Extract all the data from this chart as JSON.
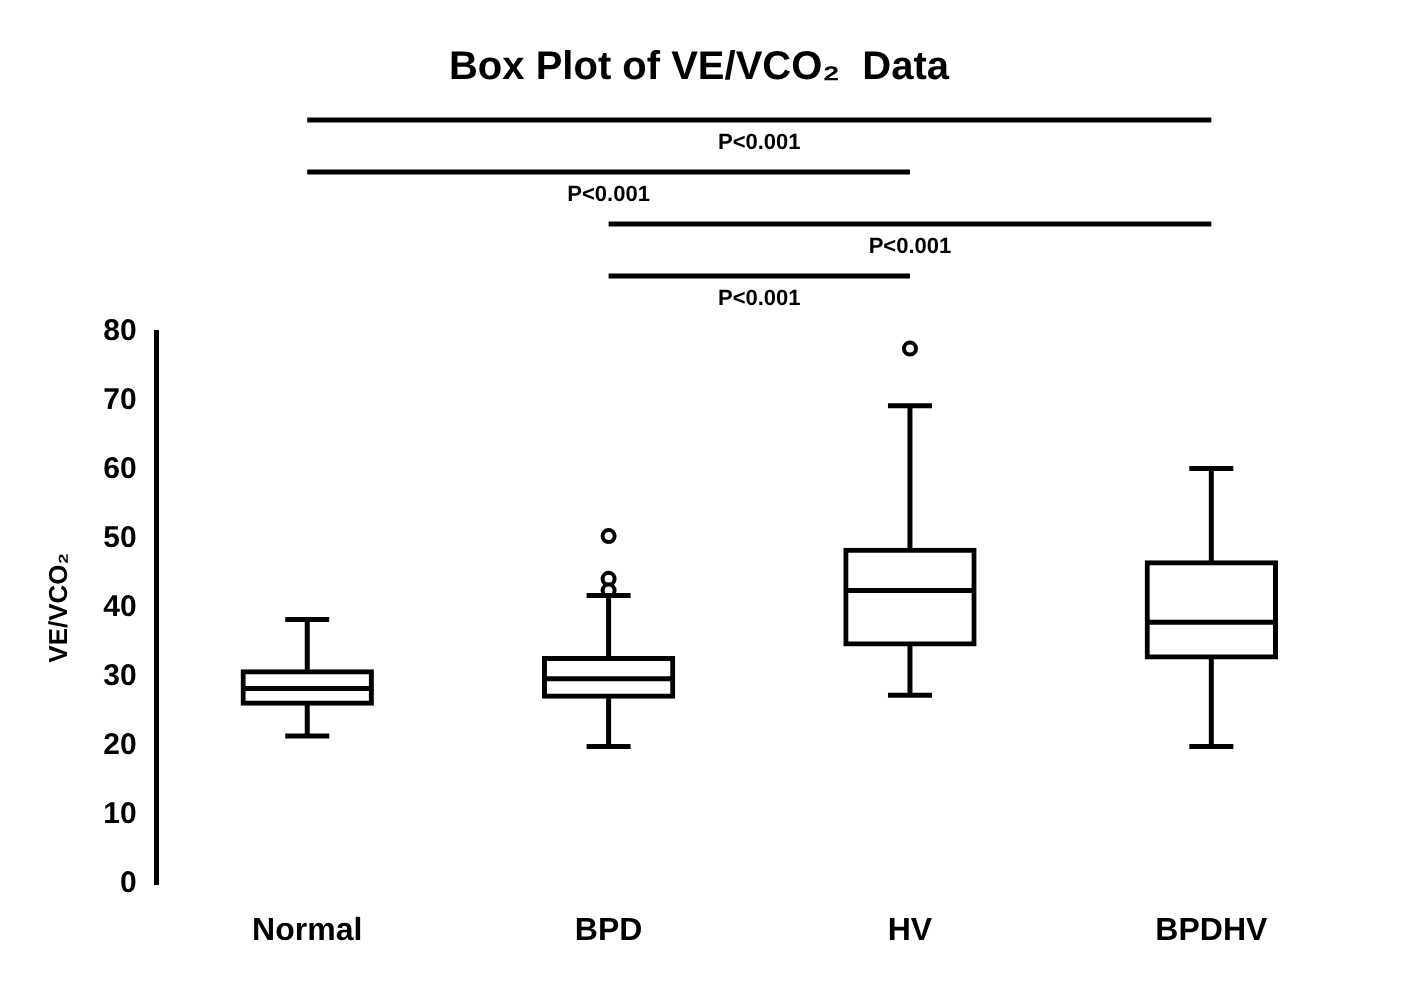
{
  "chart_data": {
    "type": "box",
    "title": "Box Plot of VE/VCO₂  Data",
    "ylabel": "VE/VCO₂",
    "categories": [
      "Normal",
      "BPD",
      "HV",
      "BPDHV"
    ],
    "boxes": [
      {
        "low": 21.4,
        "q1": 25.9,
        "median": 28.3,
        "q3": 31.0,
        "high": 38.3
      },
      {
        "low": 19.9,
        "q1": 26.9,
        "median": 29.7,
        "q3": 32.9,
        "high": 41.8,
        "outliers": [
          42.5,
          44.2,
          50.4
        ]
      },
      {
        "low": 27.3,
        "q1": 34.5,
        "median": 42.5,
        "q3": 48.6,
        "high": 69.3,
        "outliers": [
          77.6
        ]
      },
      {
        "low": 19.9,
        "q1": 32.6,
        "median": 37.9,
        "q3": 46.8,
        "high": 60.2
      }
    ],
    "ylim": [
      0,
      80
    ],
    "yticks": [
      0,
      10,
      20,
      30,
      40,
      50,
      60,
      70,
      80
    ],
    "grid": false,
    "legend": false,
    "annotations": [
      "P<0.001",
      "P<0.001",
      "P<0.001",
      "P<0.001"
    ]
  }
}
